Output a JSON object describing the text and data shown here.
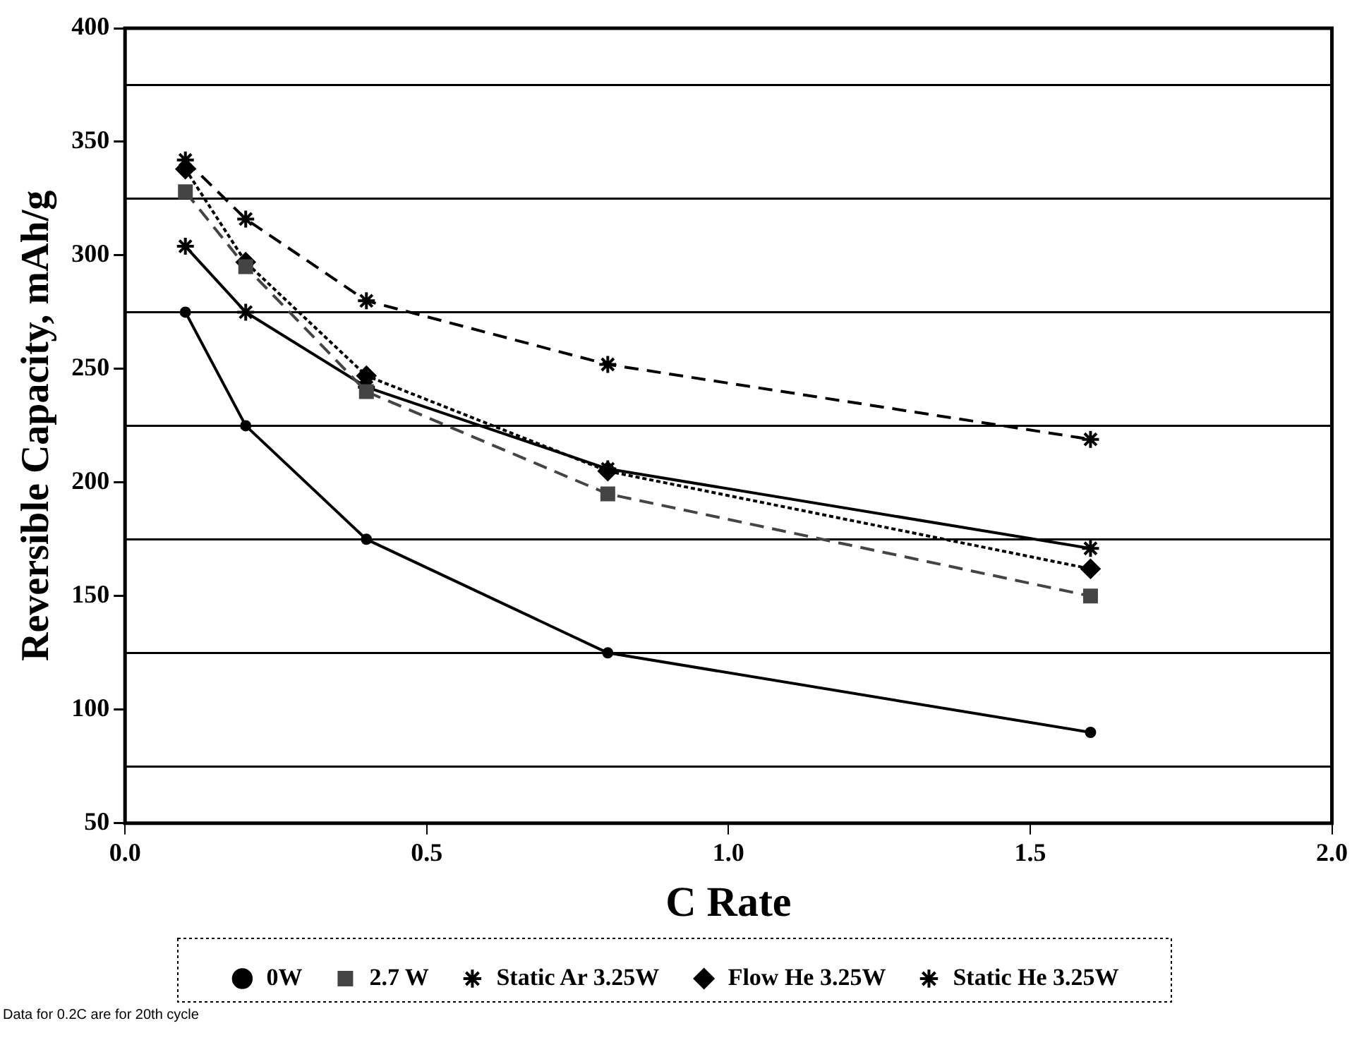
{
  "chart_data": {
    "type": "line",
    "xlabel": "C Rate",
    "ylabel": "Reversible Capacity, mAh/g",
    "x": [
      0.1,
      0.2,
      0.4,
      0.8,
      1.6
    ],
    "series": [
      {
        "name": "0W",
        "color": "#000000",
        "marker": "circle",
        "line_style": "solid",
        "values": [
          275,
          225,
          175,
          125,
          90
        ]
      },
      {
        "name": "2.7 W",
        "color": "#444444",
        "marker": "square",
        "line_style": "dashed",
        "values": [
          328,
          295,
          240,
          195,
          150
        ]
      },
      {
        "name": "Static Ar 3.25W",
        "color": "#000000",
        "marker": "cross",
        "line_style": "dashed",
        "values": [
          342,
          316,
          280,
          252,
          219
        ]
      },
      {
        "name": "Flow He 3.25W",
        "color": "#000000",
        "marker": "diamond",
        "line_style": "dotted",
        "values": [
          338,
          297,
          247,
          205,
          162
        ]
      },
      {
        "name": "Static He 3.25W",
        "color": "#000000",
        "marker": "cross",
        "line_style": "solid",
        "values": [
          304,
          275,
          242,
          206,
          171
        ]
      }
    ],
    "xlim": [
      0,
      2
    ],
    "xticks": [
      {
        "value": 0,
        "label": "0.0"
      },
      {
        "value": 0.5,
        "label": "0.5"
      },
      {
        "value": 1,
        "label": "1.0"
      },
      {
        "value": 1.5,
        "label": "1.5"
      },
      {
        "value": 2,
        "label": "2.0"
      }
    ],
    "ylim": [
      50,
      400
    ],
    "yticks": [
      50,
      {
        "value": 75,
        "label": null
      },
      100,
      {
        "value": 125,
        "label": null
      },
      150,
      {
        "value": 175,
        "label": null
      },
      200,
      {
        "value": 225,
        "label": null
      },
      250,
      {
        "value": 275,
        "label": null
      },
      300,
      {
        "value": 325,
        "label": null
      },
      350,
      {
        "value": 375,
        "label": null
      },
      400
    ],
    "grid": "y",
    "legend": "bottom",
    "annotations": [
      "Data for 0.2C are for 20th cycle"
    ]
  }
}
